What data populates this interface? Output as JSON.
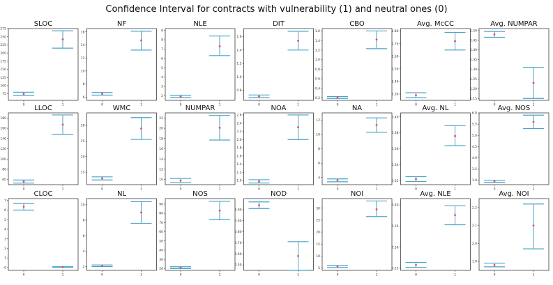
{
  "figure": {
    "title": "Confidence Interval for contracts with vulnerability (1) and neutral ones (0)"
  },
  "chart_data": {
    "type": "errorbar",
    "x_categories": [
      "0",
      "1"
    ],
    "colors": {
      "whisker": "#4aa3c7",
      "mean": "#e8476a"
    },
    "panels": [
      {
        "title": "SLOC",
        "ylim": [
          55,
          275
        ],
        "yticks": [
          75,
          100,
          125,
          150,
          175,
          200,
          225,
          250,
          275
        ],
        "series": [
          {
            "x": "0",
            "mean": 75,
            "low": 70,
            "high": 80
          },
          {
            "x": "1",
            "mean": 242,
            "low": 215,
            "high": 268
          }
        ]
      },
      {
        "title": "NF",
        "ylim": [
          5.5,
          16.5
        ],
        "yticks": [
          6,
          8,
          10,
          12,
          14,
          16
        ],
        "series": [
          {
            "x": "0",
            "mean": 6.5,
            "low": 6.3,
            "high": 6.7
          },
          {
            "x": "1",
            "mean": 14.7,
            "low": 13.2,
            "high": 16.1
          }
        ]
      },
      {
        "title": "NLE",
        "ylim": [
          1.5,
          9.2
        ],
        "yticks": [
          2,
          3,
          4,
          5,
          6,
          7,
          8,
          9
        ],
        "series": [
          {
            "x": "0",
            "mean": 1.9,
            "low": 1.8,
            "high": 2.05
          },
          {
            "x": "1",
            "mean": 7.3,
            "low": 6.3,
            "high": 8.4
          }
        ]
      },
      {
        "title": "DIT",
        "ylim": [
          0.65,
          1.72
        ],
        "yticks": [
          0.8,
          1.0,
          1.2,
          1.4,
          1.6
        ],
        "series": [
          {
            "x": "0",
            "mean": 0.71,
            "low": 0.69,
            "high": 0.73
          },
          {
            "x": "1",
            "mean": 1.54,
            "low": 1.4,
            "high": 1.68
          }
        ]
      },
      {
        "title": "CBO",
        "ylim": [
          0.15,
          1.65
        ],
        "yticks": [
          0.2,
          0.4,
          0.6,
          0.8,
          1.0,
          1.2,
          1.4,
          1.6
        ],
        "series": [
          {
            "x": "0",
            "mean": 0.21,
            "low": 0.19,
            "high": 0.23
          },
          {
            "x": "1",
            "mean": 1.42,
            "low": 1.23,
            "high": 1.6
          }
        ]
      },
      {
        "title": "Avg. McCC",
        "ylim": [
          1.25,
          1.82
        ],
        "yticks": [
          1.3,
          1.4,
          1.5,
          1.6,
          1.7,
          1.8
        ],
        "series": [
          {
            "x": "0",
            "mean": 1.29,
            "low": 1.27,
            "high": 1.31
          },
          {
            "x": "1",
            "mean": 1.72,
            "low": 1.65,
            "high": 1.79
          }
        ]
      },
      {
        "title": "Avg. NUMPAR",
        "ylim": [
          1.14,
          1.51
        ],
        "yticks": [
          1.15,
          1.2,
          1.25,
          1.3,
          1.35,
          1.4,
          1.45,
          1.5
        ],
        "series": [
          {
            "x": "0",
            "mean": 1.48,
            "low": 1.465,
            "high": 1.495
          },
          {
            "x": "1",
            "mean": 1.23,
            "low": 1.15,
            "high": 1.31
          }
        ]
      },
      {
        "title": "LLOC",
        "ylim": [
          50,
          190
        ],
        "yticks": [
          60,
          80,
          100,
          120,
          140,
          160,
          180
        ],
        "series": [
          {
            "x": "0",
            "mean": 56,
            "low": 53,
            "high": 59
          },
          {
            "x": "1",
            "mean": 167,
            "low": 148,
            "high": 186
          }
        ]
      },
      {
        "title": "WMC",
        "ylim": [
          11,
          34
        ],
        "yticks": [
          15,
          20,
          25,
          30
        ],
        "series": [
          {
            "x": "0",
            "mean": 13,
            "low": 12.5,
            "high": 13.5
          },
          {
            "x": "1",
            "mean": 29,
            "low": 25.5,
            "high": 32.5
          }
        ]
      },
      {
        "title": "NUMPAR",
        "ylim": [
          9,
          23
        ],
        "yticks": [
          10,
          12,
          14,
          16,
          18,
          20,
          22
        ],
        "series": [
          {
            "x": "0",
            "mean": 9.8,
            "low": 9.4,
            "high": 10.2
          },
          {
            "x": "1",
            "mean": 20.1,
            "low": 17.7,
            "high": 22.5
          }
        ]
      },
      {
        "title": "NOA",
        "ylim": [
          0.9,
          2.65
        ],
        "yticks": [
          1.0,
          1.2,
          1.4,
          1.6,
          1.8,
          2.0,
          2.2,
          2.4,
          2.6
        ],
        "series": [
          {
            "x": "0",
            "mean": 0.98,
            "low": 0.94,
            "high": 1.02
          },
          {
            "x": "1",
            "mean": 2.3,
            "low": 2.0,
            "high": 2.6
          }
        ]
      },
      {
        "title": "NA",
        "ylim": [
          3,
          13
        ],
        "yticks": [
          4,
          6,
          8,
          10,
          12
        ],
        "series": [
          {
            "x": "0",
            "mean": 3.6,
            "low": 3.4,
            "high": 3.8
          },
          {
            "x": "1",
            "mean": 11.3,
            "low": 10.3,
            "high": 12.3
          }
        ]
      },
      {
        "title": "Avg. NL",
        "ylim": [
          0.315,
          0.405
        ],
        "yticks": [
          0.32,
          0.34,
          0.36,
          0.38,
          0.4
        ],
        "series": [
          {
            "x": "0",
            "mean": 0.322,
            "low": 0.319,
            "high": 0.325
          },
          {
            "x": "1",
            "mean": 0.376,
            "low": 0.364,
            "high": 0.389
          }
        ]
      },
      {
        "title": "Avg. NOS",
        "ylim": [
          2.8,
          6.0
        ],
        "yticks": [
          3.0,
          3.5,
          4.0,
          4.5,
          5.0,
          5.5,
          6.0
        ],
        "series": [
          {
            "x": "0",
            "mean": 2.95,
            "low": 2.9,
            "high": 3.0
          },
          {
            "x": "1",
            "mean": 5.6,
            "low": 5.3,
            "high": 5.9
          }
        ]
      },
      {
        "title": "CLOC",
        "ylim": [
          -0.3,
          7.2
        ],
        "yticks": [
          0,
          1,
          2,
          3,
          4,
          5,
          6,
          7
        ],
        "series": [
          {
            "x": "0",
            "mean": 6.35,
            "low": 6.0,
            "high": 6.7
          },
          {
            "x": "1",
            "mean": 0.05,
            "low": 0.02,
            "high": 0.08
          }
        ]
      },
      {
        "title": "NL",
        "ylim": [
          1.5,
          10.8
        ],
        "yticks": [
          2,
          4,
          6,
          8,
          10
        ],
        "series": [
          {
            "x": "0",
            "mean": 2.1,
            "low": 2.0,
            "high": 2.2
          },
          {
            "x": "1",
            "mean": 9.0,
            "low": 7.6,
            "high": 10.4
          }
        ]
      },
      {
        "title": "NOS",
        "ylim": [
          18,
          96
        ],
        "yticks": [
          20,
          30,
          40,
          50,
          60,
          70,
          80,
          90
        ],
        "series": [
          {
            "x": "0",
            "mean": 21,
            "low": 20,
            "high": 22
          },
          {
            "x": "1",
            "mean": 83,
            "low": 73,
            "high": 93
          }
        ]
      },
      {
        "title": "NOD",
        "ylim": [
          0.45,
          1.1
        ],
        "yticks": [
          0.5,
          0.6,
          0.7,
          0.8,
          0.9,
          1.0
        ],
        "series": [
          {
            "x": "0",
            "mean": 1.04,
            "low": 1.01,
            "high": 1.07
          },
          {
            "x": "1",
            "mean": 0.58,
            "low": 0.45,
            "high": 0.71
          }
        ]
      },
      {
        "title": "NOI",
        "ylim": [
          4,
          34
        ],
        "yticks": [
          5,
          10,
          15,
          20,
          25,
          30
        ],
        "series": [
          {
            "x": "0",
            "mean": 5.6,
            "low": 5.2,
            "high": 6.0
          },
          {
            "x": "1",
            "mean": 29.5,
            "low": 26.5,
            "high": 33
          }
        ]
      },
      {
        "title": "Avg. NLE",
        "ylim": [
          0.245,
          0.415
        ],
        "yticks": [
          0.25,
          0.3,
          0.35,
          0.4
        ],
        "series": [
          {
            "x": "0",
            "mean": 0.258,
            "low": 0.252,
            "high": 0.264
          },
          {
            "x": "1",
            "mean": 0.376,
            "low": 0.353,
            "high": 0.398
          }
        ]
      },
      {
        "title": "Avg. NOI",
        "ylim": [
          1.85,
          2.25
        ],
        "yticks": [
          1.9,
          2.0,
          2.1,
          2.2
        ],
        "series": [
          {
            "x": "0",
            "mean": 1.88,
            "low": 1.87,
            "high": 1.89
          },
          {
            "x": "1",
            "mean": 2.1,
            "low": 1.97,
            "high": 2.22
          }
        ]
      }
    ]
  }
}
